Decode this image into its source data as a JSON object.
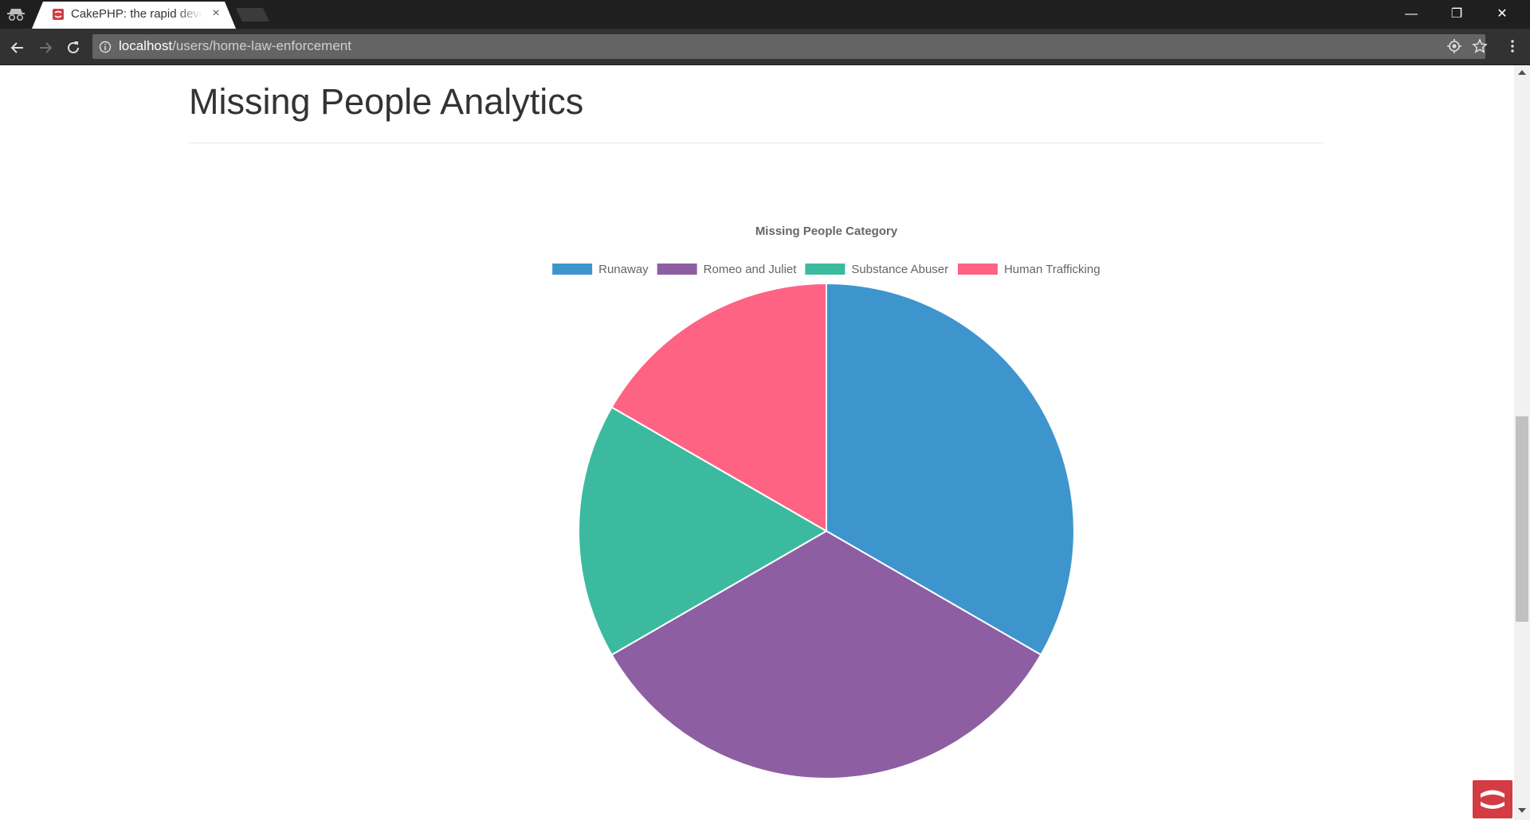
{
  "browser": {
    "tab_title": "CakePHP: the rapid development php framework",
    "tab_close": "×",
    "url_host": "localhost",
    "url_path": "/users/home-law-enforcement",
    "window_controls": {
      "minimize": "—",
      "maximize": "❐",
      "close": "✕"
    }
  },
  "page": {
    "title": "Missing People Analytics"
  },
  "chart_data": {
    "type": "pie",
    "title": "Missing People Category",
    "categories": [
      "Runaway",
      "Romeo and Juliet",
      "Substance Abuser",
      "Human Trafficking"
    ],
    "values": [
      2,
      2,
      1,
      1
    ],
    "colors": [
      "#3e95cd",
      "#8e5ea2",
      "#3cba9f",
      "#ff6384"
    ],
    "legend_position": "top",
    "start_angle": "top, clockwise"
  }
}
